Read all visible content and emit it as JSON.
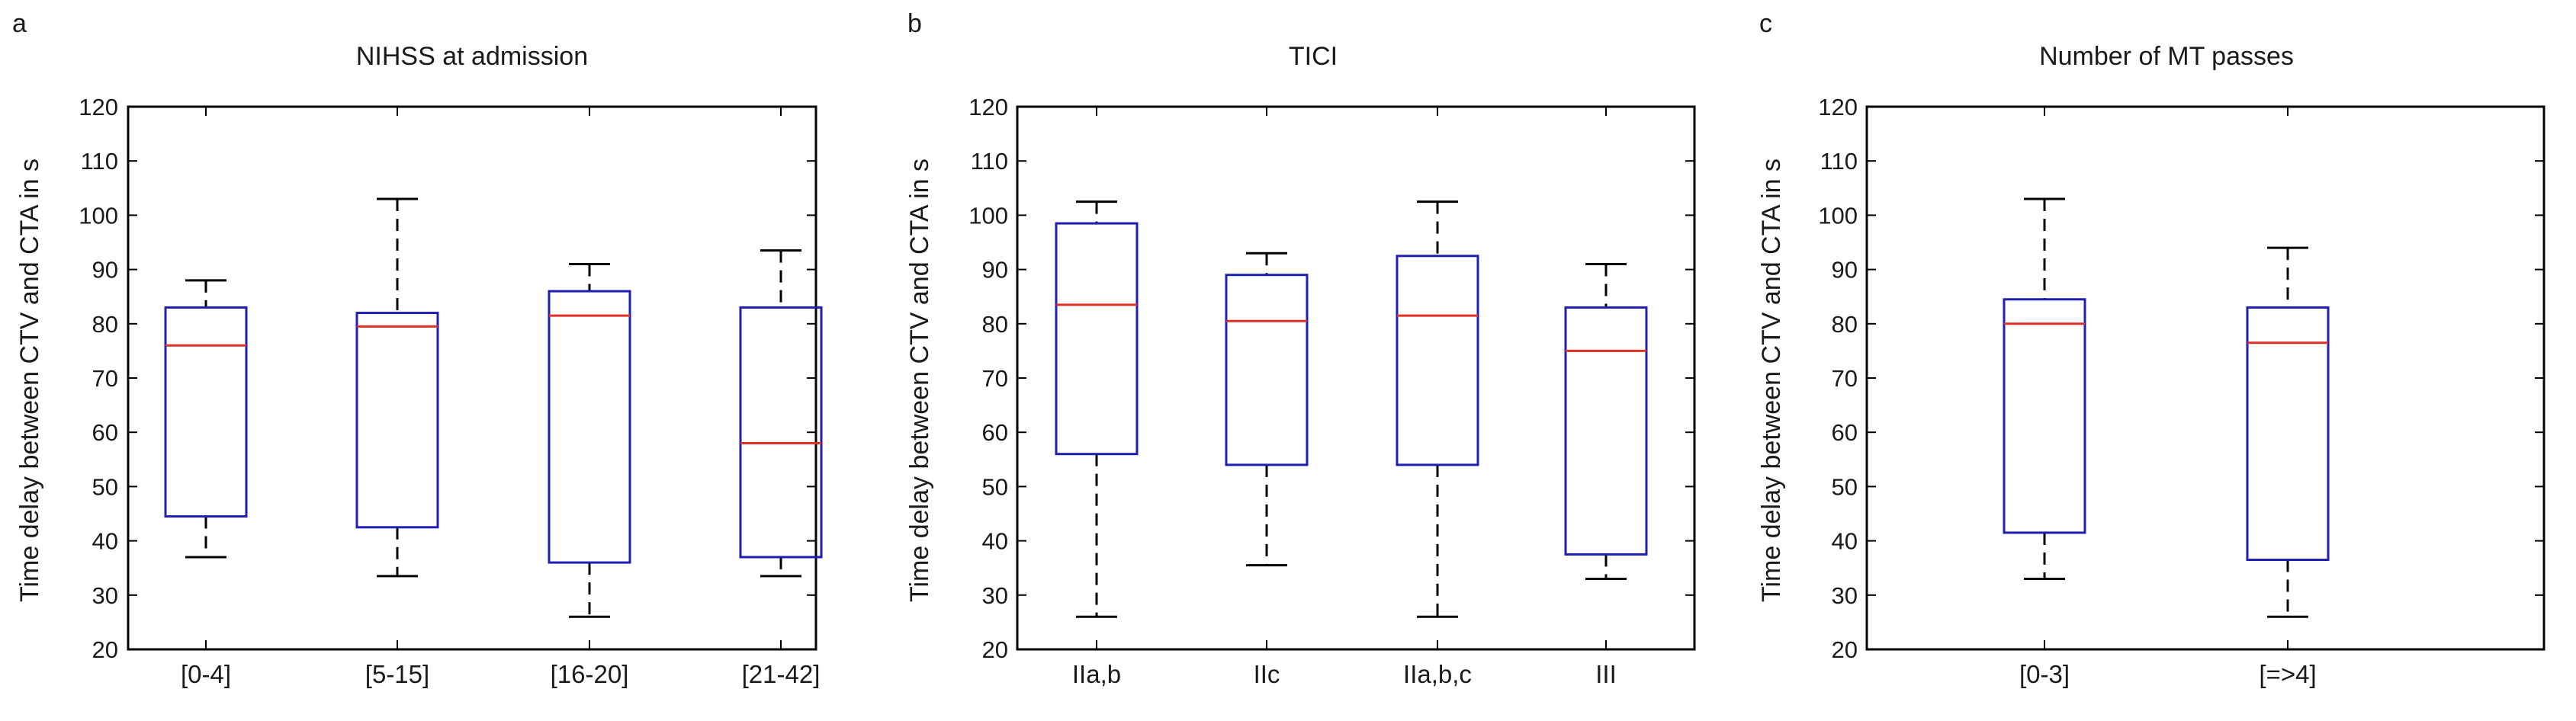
{
  "chart_data": [
    {
      "type": "box",
      "panel_label": "a",
      "title": "NIHSS at admission",
      "xlabel": "",
      "ylabel": "Time delay between CTV and CTA in s",
      "ylim": [
        20,
        120
      ],
      "yticks": [
        20,
        30,
        40,
        50,
        60,
        70,
        80,
        90,
        100,
        110,
        120
      ],
      "categories": [
        "[0-4]",
        "[5-15]",
        "[16-20]",
        "[21-42]"
      ],
      "boxes": [
        {
          "min": 37,
          "q1": 44.5,
          "median": 76,
          "q3": 83,
          "max": 88
        },
        {
          "min": 33.5,
          "q1": 42.5,
          "median": 79.5,
          "q3": 82,
          "max": 103
        },
        {
          "min": 26,
          "q1": 36,
          "median": 81.5,
          "q3": 86,
          "max": 91
        },
        {
          "min": 33.5,
          "q1": 37,
          "median": 58,
          "q3": 83,
          "max": 93.5
        }
      ]
    },
    {
      "type": "box",
      "panel_label": "b",
      "title": "TICI",
      "xlabel": "",
      "ylabel": "Time delay between CTV and CTA in s",
      "ylim": [
        20,
        120
      ],
      "yticks": [
        20,
        30,
        40,
        50,
        60,
        70,
        80,
        90,
        100,
        110,
        120
      ],
      "categories": [
        "IIa,b",
        "IIc",
        "IIa,b,c",
        "III"
      ],
      "boxes": [
        {
          "min": 26,
          "q1": 56,
          "median": 83.5,
          "q3": 98.5,
          "max": 102.5
        },
        {
          "min": 35.5,
          "q1": 54,
          "median": 80.5,
          "q3": 89,
          "max": 93
        },
        {
          "min": 26,
          "q1": 54,
          "median": 81.5,
          "q3": 92.5,
          "max": 102.5
        },
        {
          "min": 33,
          "q1": 37.5,
          "median": 75,
          "q3": 83,
          "max": 91
        }
      ]
    },
    {
      "type": "box",
      "panel_label": "c",
      "title": "Number of MT passes",
      "xlabel": "",
      "ylabel": "Time delay between CTV and CTA in s",
      "ylim": [
        20,
        120
      ],
      "yticks": [
        20,
        30,
        40,
        50,
        60,
        70,
        80,
        90,
        100,
        110,
        120
      ],
      "categories": [
        "[0-3]",
        "[=>4]"
      ],
      "boxes": [
        {
          "min": 33,
          "q1": 41.5,
          "median": 80,
          "q3": 84.5,
          "max": 103
        },
        {
          "min": 26,
          "q1": 36.5,
          "median": 76.5,
          "q3": 83,
          "max": 94
        }
      ]
    }
  ],
  "colors": {
    "box": "#1f1fb4",
    "median": "#e0302a",
    "whisker": "#000000",
    "axis": "#000000"
  }
}
